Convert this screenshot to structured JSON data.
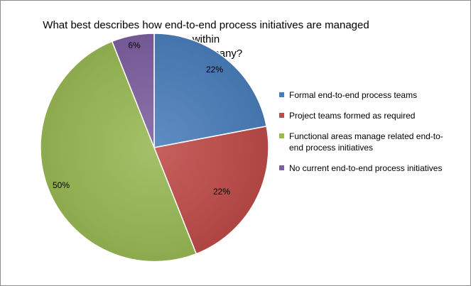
{
  "chart_data": {
    "type": "pie",
    "title_lines": [
      "What best describes how end-to-end process initiatives are managed within",
      "your company?"
    ],
    "categories": [
      "Formal end-to-end process teams",
      "Project teams formed as required",
      "Functional areas manage related end-to-end process initiatives",
      "No current end-to-end process initiatives"
    ],
    "values": [
      22,
      22,
      50,
      6
    ],
    "data_labels": [
      "22%",
      "22%",
      "50%",
      "6%"
    ],
    "colors": [
      "#4a7ebb",
      "#be4b48",
      "#98b954",
      "#7d60a0"
    ],
    "legend_position": "right"
  }
}
